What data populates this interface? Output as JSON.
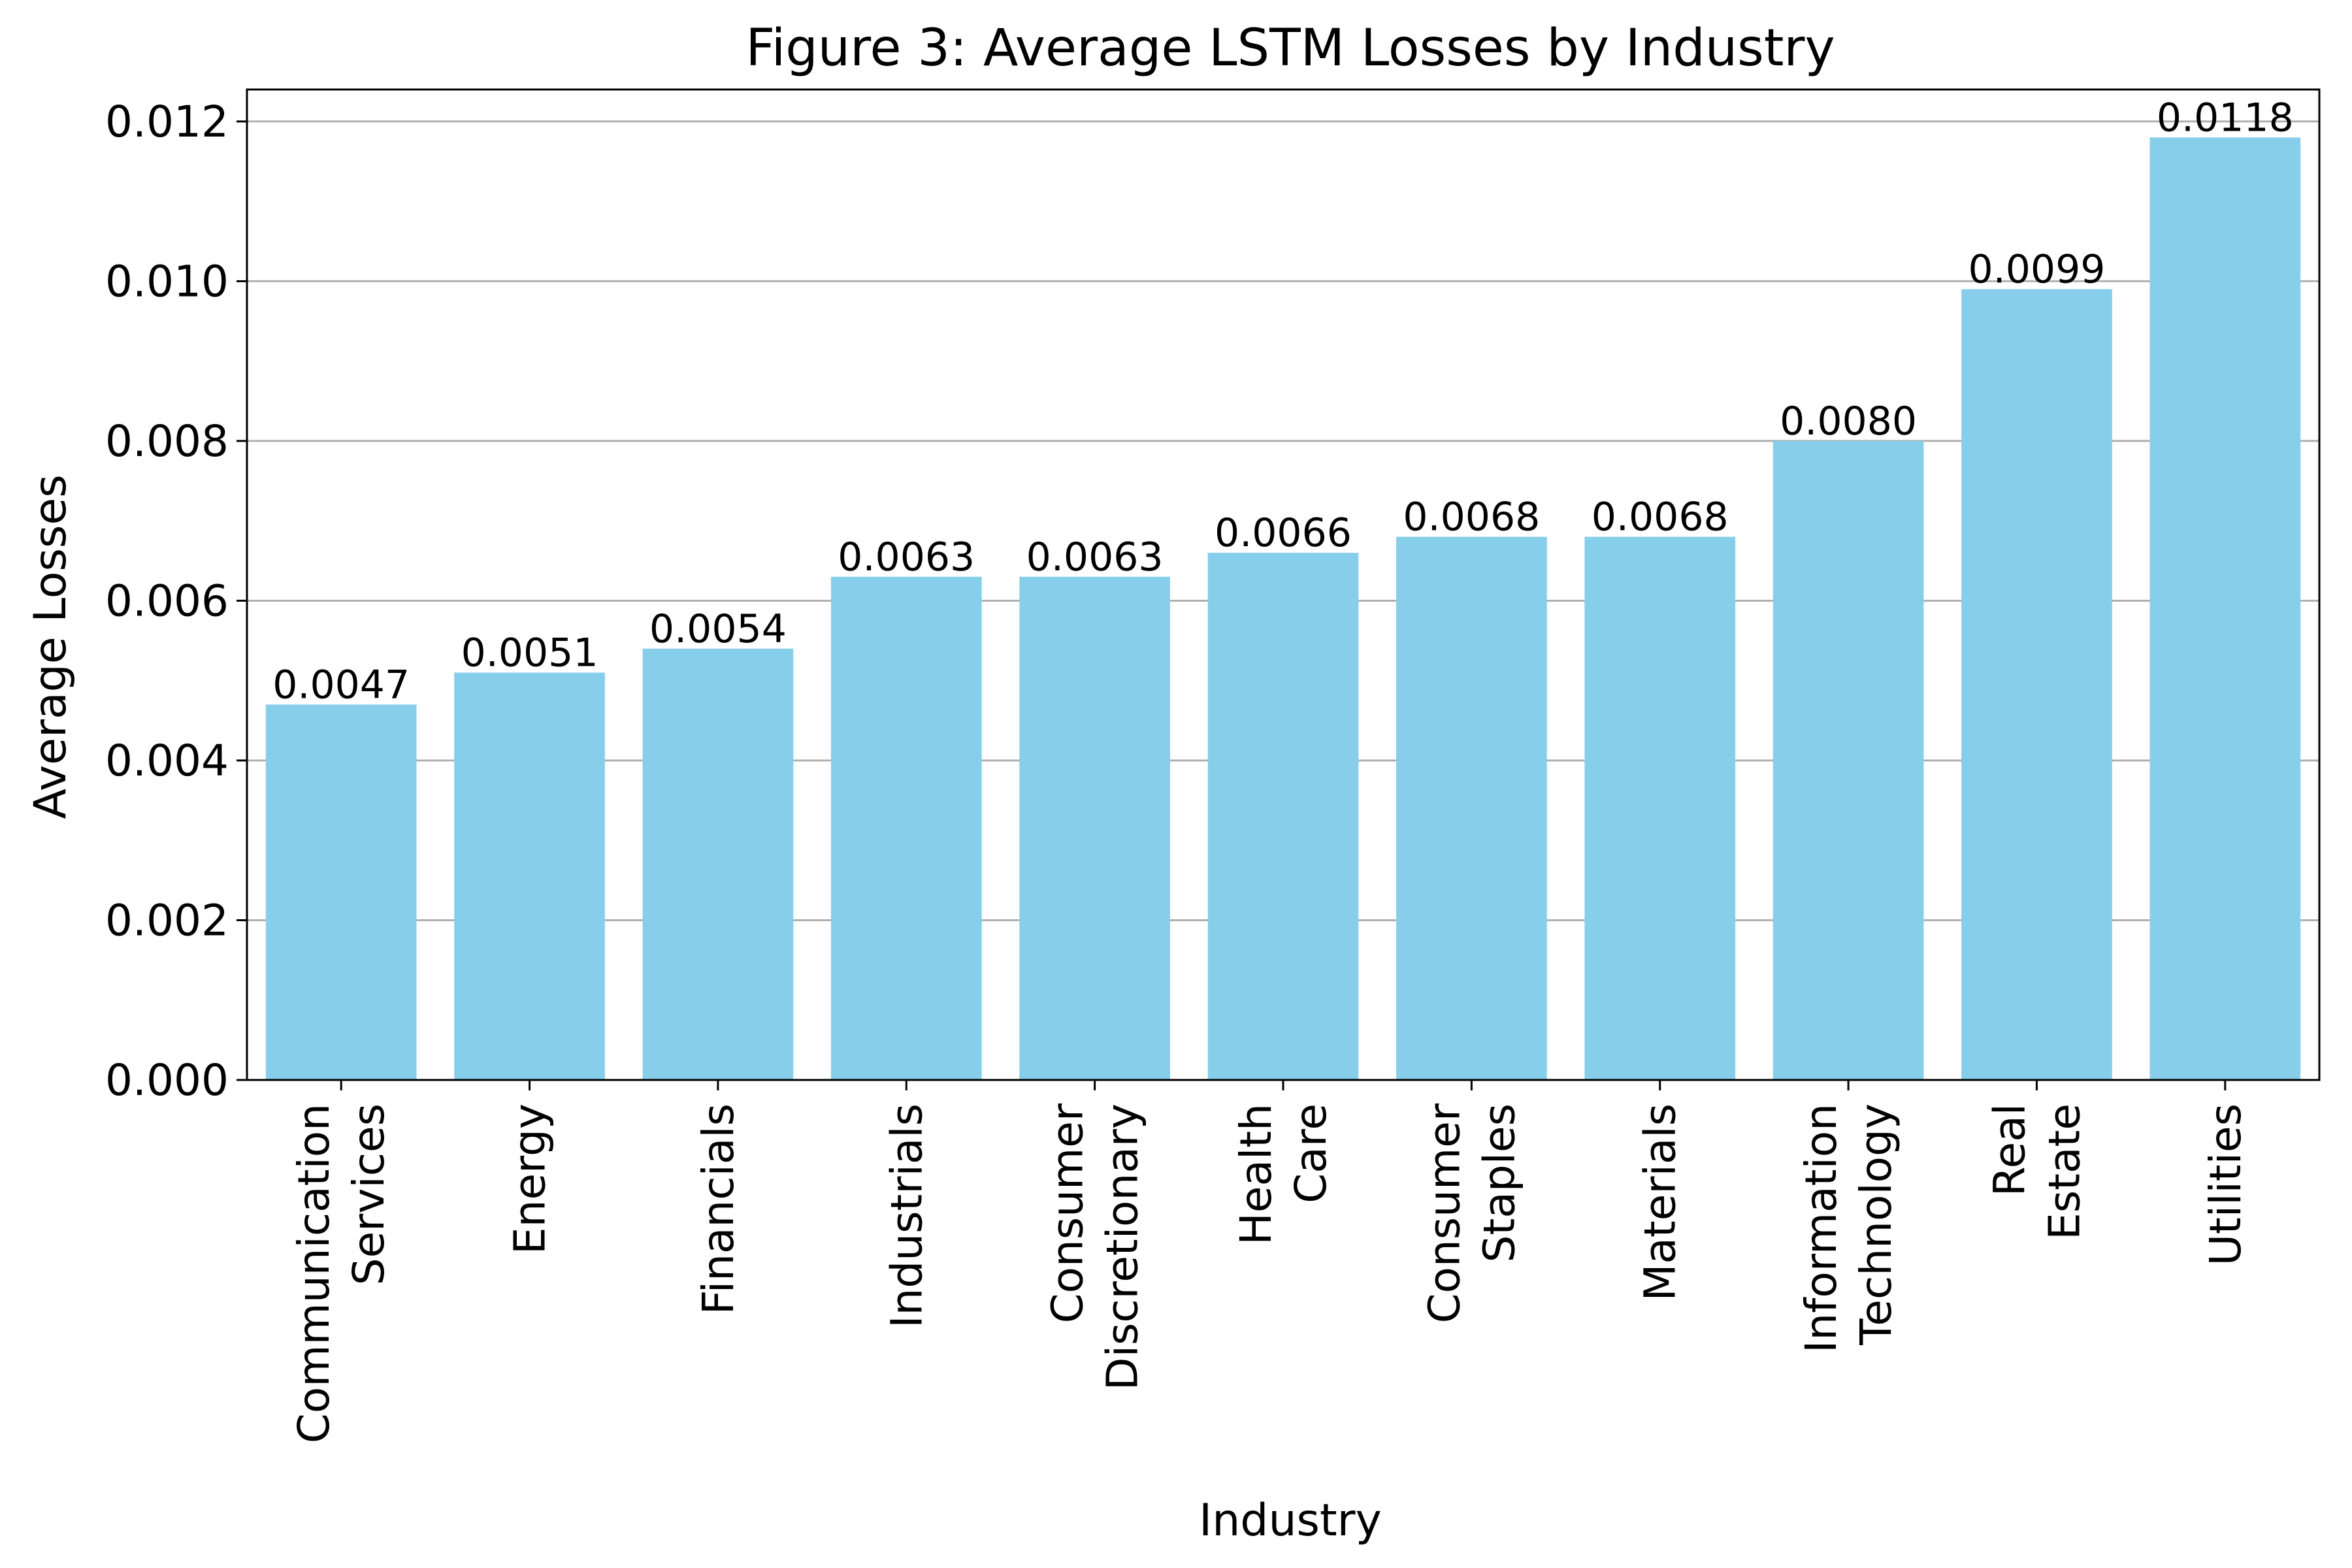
{
  "chart_data": {
    "type": "bar",
    "title": "Figure 3: Average LSTM Losses by Industry",
    "xlabel": "Industry",
    "ylabel": "Average Losses",
    "categories": [
      "Communication\nServices",
      "Energy",
      "Financials",
      "Industrials",
      "Consumer\nDiscretionary",
      "Health\nCare",
      "Consumer\nStaples",
      "Materials",
      "Information\nTechnology",
      "Real\nEstate",
      "Utilities"
    ],
    "values": [
      0.0047,
      0.0051,
      0.0054,
      0.0063,
      0.0063,
      0.0066,
      0.0068,
      0.0068,
      0.008,
      0.0099,
      0.0118
    ],
    "data_labels": [
      "0.0047",
      "0.0051",
      "0.0054",
      "0.0063",
      "0.0063",
      "0.0066",
      "0.0068",
      "0.0068",
      "0.0080",
      "0.0099",
      "0.0118"
    ],
    "yticks": [
      "0.000",
      "0.002",
      "0.004",
      "0.006",
      "0.008",
      "0.010",
      "0.012"
    ],
    "ylim": [
      0,
      0.0124
    ],
    "grid": "horizontal",
    "legend": "none",
    "colors": {
      "bar": "#87CEEB",
      "grid": "#b0b0b0",
      "axis": "#000000"
    }
  }
}
